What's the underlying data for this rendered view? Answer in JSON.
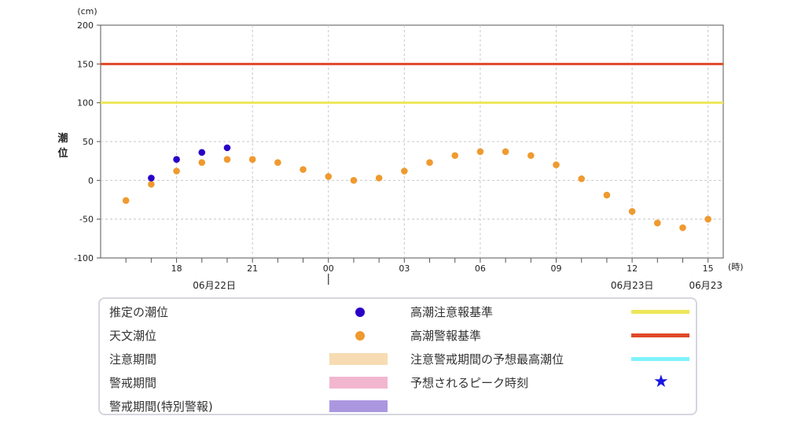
{
  "chart_data": {
    "type": "scatter",
    "y_unit": "(cm)",
    "x_unit": "(時)",
    "ylabel": "潮位",
    "ylim": [
      -100,
      200
    ],
    "yticks": [
      200,
      150,
      100,
      50,
      0,
      -50,
      -100
    ],
    "x_start": "2024-06-22 15:00",
    "x_end": "2024-06-23 15:00",
    "xticks": [
      {
        "t": 18,
        "label": "18"
      },
      {
        "t": 21,
        "label": "21"
      },
      {
        "t": 24,
        "label": "00"
      },
      {
        "t": 27,
        "label": "03"
      },
      {
        "t": 30,
        "label": "06"
      },
      {
        "t": 33,
        "label": "09"
      },
      {
        "t": 36,
        "label": "12"
      },
      {
        "t": 39,
        "label": "15"
      }
    ],
    "date_labels": [
      {
        "t": 18,
        "label": "06月22日"
      },
      {
        "t": 36,
        "label": "06月23日"
      },
      {
        "t": 39,
        "label": "06月23"
      }
    ],
    "thresholds": [
      {
        "name": "高潮警報基準",
        "value": 150,
        "color": "#e0482a"
      },
      {
        "name": "高潮注意報基準",
        "value": 100,
        "color": "#eee65a"
      }
    ],
    "series": [
      {
        "name": "推定の潮位",
        "color": "#2a00c8",
        "points": [
          [
            17,
            3
          ],
          [
            18,
            27
          ],
          [
            19,
            36
          ],
          [
            20,
            42
          ]
        ]
      },
      {
        "name": "天文潮位",
        "color": "#ef9a2f",
        "points": [
          [
            16,
            -26
          ],
          [
            17,
            -5
          ],
          [
            18,
            12
          ],
          [
            19,
            23
          ],
          [
            20,
            27
          ],
          [
            21,
            27
          ],
          [
            22,
            23
          ],
          [
            23,
            14
          ],
          [
            24,
            5
          ],
          [
            25,
            0
          ],
          [
            26,
            3
          ],
          [
            27,
            12
          ],
          [
            28,
            23
          ],
          [
            29,
            32
          ],
          [
            30,
            37
          ],
          [
            31,
            37
          ],
          [
            32,
            32
          ],
          [
            33,
            20
          ],
          [
            34,
            2
          ],
          [
            35,
            -19
          ],
          [
            36,
            -40
          ],
          [
            37,
            -55
          ],
          [
            38,
            -61
          ],
          [
            39,
            -50
          ]
        ]
      }
    ]
  },
  "legend": {
    "estimated_tide": {
      "label": "推定の潮位",
      "color": "#2a00c8",
      "icon": "dot"
    },
    "astronomical_tide": {
      "label": "天文潮位",
      "color": "#ef9a2f",
      "icon": "dot"
    },
    "advisory_period": {
      "label": "注意期間",
      "color": "#f7dbb2"
    },
    "warning_period": {
      "label": "警戒期間",
      "color": "#f2b6cf"
    },
    "special_warning_period": {
      "label": "警戒期間(特別警報)",
      "color": "#ab97df"
    },
    "advisory_criterion": {
      "label": "高潮注意報基準",
      "color": "#eee65a"
    },
    "warning_criterion": {
      "label": "高潮警報基準",
      "color": "#e0482a"
    },
    "predicted_max": {
      "label": "注意警戒期間の予想最高潮位",
      "color": "#7ff3fb"
    },
    "predicted_peak": {
      "label": "予想されるピーク時刻",
      "color": "#1717e0",
      "icon": "star"
    }
  }
}
